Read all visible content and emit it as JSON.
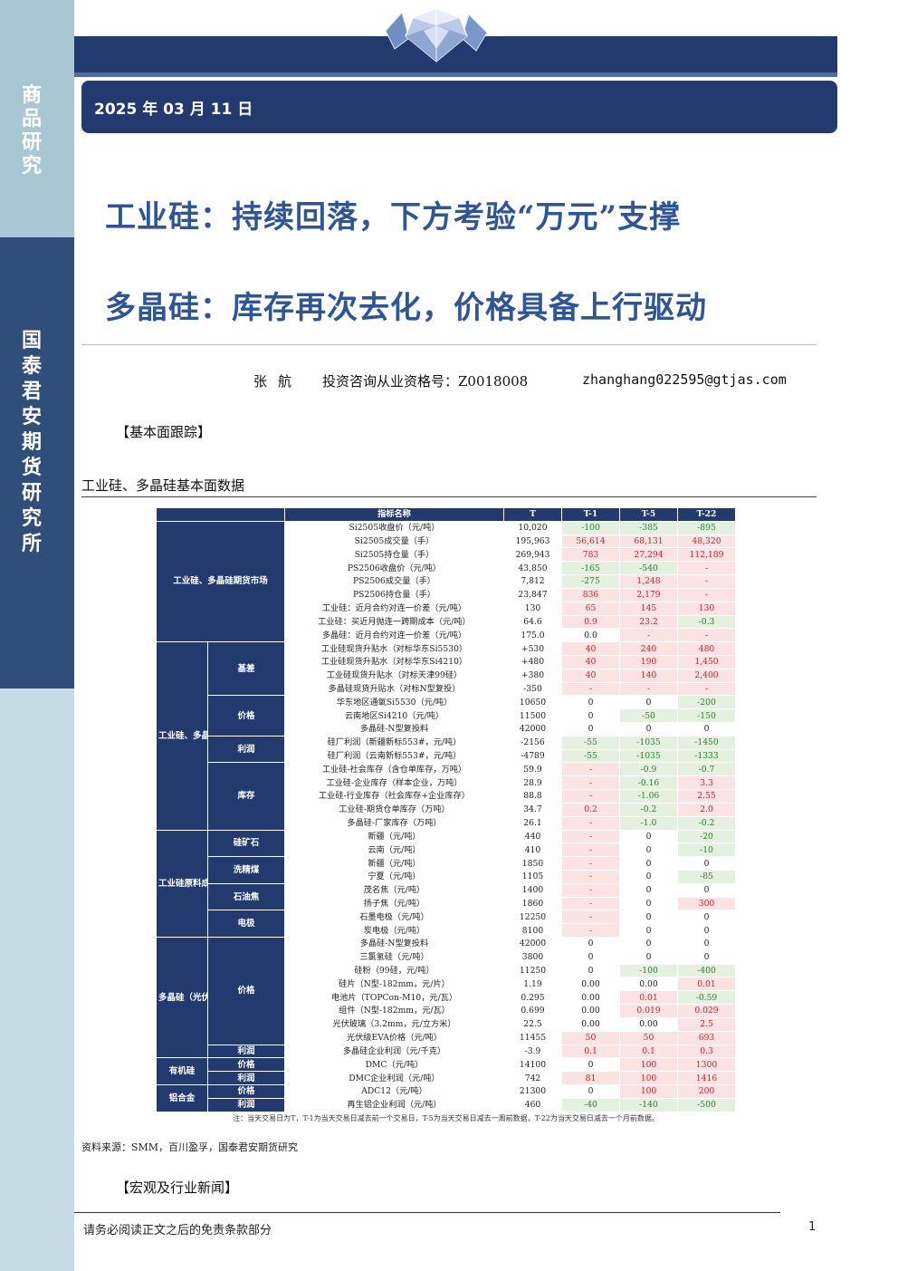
{
  "sidebar": {
    "top_label": "商品研究",
    "mid_label": "国泰君安期货研究所"
  },
  "header": {
    "date": "2025 年 03 月 11 日"
  },
  "titles": {
    "line1": "工业硅：持续回落，下方考验“万元”支撑",
    "line2": "多晶硅：库存再次去化，价格具备上行驱动"
  },
  "author": {
    "name": "张航",
    "qualification": "投资咨询从业资格号：Z0018008",
    "email": "zhanghang022595@gtjas.com"
  },
  "sections": {
    "fundamentals": "【基本面跟踪】",
    "news": "【宏观及行业新闻】"
  },
  "table_caption": "工业硅、多晶硅基本面数据",
  "source_note": "资料来源：SMM，百川盈孚，国泰君安期货研究",
  "footer": {
    "disclaimer": "请务必阅读正文之后的免责条款部分",
    "page": "1"
  },
  "table": {
    "headers": [
      "指标名称",
      "T",
      "T-1",
      "T-5",
      "T-22"
    ],
    "groups": {
      "futures": "工业硅、多晶硅期货市场",
      "spot": "工业硅、多晶硅",
      "cost": "工业硅原料成本",
      "pv": "多晶硅（光伏）",
      "silicone": "有机硅",
      "alloy": "铝合金"
    },
    "subs": {
      "basis": "基差",
      "price": "价格",
      "profit": "利润",
      "inventory": "库存",
      "ore": "硅矿石",
      "coal": "洗精煤",
      "coke": "石油焦",
      "electrode": "电极",
      "pv_price": "价格",
      "pv_profit": "利润",
      "dmc_price": "价格",
      "dmc_profit": "利润",
      "adc_price": "价格",
      "adc_profit": "利润"
    },
    "rows": [
      {
        "name": "Si2505收盘价（元/吨）",
        "t": "10,020",
        "t1": "-100",
        "t5": "-385",
        "t22": "-895",
        "c1": "green",
        "c5": "green",
        "c22": "green"
      },
      {
        "name": "Si2505成交量（手）",
        "t": "195,963",
        "t1": "56,614",
        "t5": "68,131",
        "t22": "48,320",
        "c1": "red",
        "c5": "red",
        "c22": "red"
      },
      {
        "name": "Si2505持仓量（手）",
        "t": "269,943",
        "t1": "783",
        "t5": "27,294",
        "t22": "112,189",
        "c1": "red",
        "c5": "red",
        "c22": "red"
      },
      {
        "name": "PS2506收盘价（元/吨）",
        "t": "43,850",
        "t1": "-165",
        "t5": "-540",
        "t22": "-",
        "c1": "green",
        "c5": "green",
        "c22": "red"
      },
      {
        "name": "PS2506成交量（手）",
        "t": "7,812",
        "t1": "-275",
        "t5": "1,248",
        "t22": "-",
        "c1": "green",
        "c5": "red",
        "c22": "red"
      },
      {
        "name": "PS2506持仓量（手）",
        "t": "23,847",
        "t1": "836",
        "t5": "2,179",
        "t22": "-",
        "c1": "red",
        "c5": "red",
        "c22": "red"
      },
      {
        "name": "工业硅：近月合约对连一价差（元/吨）",
        "t": "130",
        "t1": "65",
        "t5": "145",
        "t22": "130",
        "c1": "red",
        "c5": "red",
        "c22": "red"
      },
      {
        "name": "工业硅：买近月抛连一跨期成本（元/吨）",
        "t": "64.6",
        "t1": "0.9",
        "t5": "23.2",
        "t22": "-0.3",
        "c1": "red",
        "c5": "red",
        "c22": "green"
      },
      {
        "name": "多晶硅：近月合约对连一价差（元/吨）",
        "t": "175.0",
        "t1": "0.0",
        "t5": "-",
        "t22": "-",
        "c1": "plain",
        "c5": "red",
        "c22": "red"
      },
      {
        "name": "工业硅现货升贴水（对标华东Si5530）",
        "t": "+530",
        "t1": "40",
        "t5": "240",
        "t22": "480",
        "c1": "red",
        "c5": "red",
        "c22": "red"
      },
      {
        "name": "工业硅现货升贴水（对标华东Si4210）",
        "t": "+480",
        "t1": "40",
        "t5": "190",
        "t22": "1,450",
        "c1": "red",
        "c5": "red",
        "c22": "red"
      },
      {
        "name": "工业硅现货升贴水（对标天津99硅）",
        "t": "+380",
        "t1": "40",
        "t5": "140",
        "t22": "2,400",
        "c1": "red",
        "c5": "red",
        "c22": "red"
      },
      {
        "name": "多晶硅现货升贴水（对标N型复投）",
        "t": "-350",
        "t1": "-",
        "t5": "-",
        "t22": "-",
        "c1": "red",
        "c5": "red",
        "c22": "red"
      },
      {
        "name": "华东地区通氧Si5530（元/吨）",
        "t": "10650",
        "t1": "0",
        "t5": "0",
        "t22": "-200",
        "c1": "plain",
        "c5": "plain",
        "c22": "green"
      },
      {
        "name": "云南地区Si4210（元/吨）",
        "t": "11500",
        "t1": "0",
        "t5": "-50",
        "t22": "-150",
        "c1": "plain",
        "c5": "green",
        "c22": "green"
      },
      {
        "name": "多晶硅-N型复投料",
        "t": "42000",
        "t1": "0",
        "t5": "0",
        "t22": "0",
        "c1": "plain",
        "c5": "plain",
        "c22": "plain"
      },
      {
        "name": "硅厂利润（新疆新标553#，元/吨）",
        "t": "-2156",
        "t1": "-55",
        "t5": "-1035",
        "t22": "-1450",
        "c1": "green",
        "c5": "green",
        "c22": "green"
      },
      {
        "name": "硅厂利润（云南新标553#，元/吨）",
        "t": "-4789",
        "t1": "-55",
        "t5": "-1035",
        "t22": "-1333",
        "c1": "green",
        "c5": "green",
        "c22": "green"
      },
      {
        "name": "工业硅-社会库存（含仓单库存，万吨）",
        "t": "59.9",
        "t1": "-",
        "t5": "-0.9",
        "t22": "-0.7",
        "c1": "red",
        "c5": "green",
        "c22": "green"
      },
      {
        "name": "工业硅-企业库存（样本企业，万吨）",
        "t": "28.9",
        "t1": "-",
        "t5": "-0.16",
        "t22": "3.3",
        "c1": "red",
        "c5": "green",
        "c22": "red"
      },
      {
        "name": "工业硅-行业库存（社会库存+企业库存）",
        "t": "88.8",
        "t1": "-",
        "t5": "-1.06",
        "t22": "2.55",
        "c1": "red",
        "c5": "green",
        "c22": "red"
      },
      {
        "name": "工业硅-期货仓单库存（万吨）",
        "t": "34.7",
        "t1": "0.2",
        "t5": "-0.2",
        "t22": "2.0",
        "c1": "red",
        "c5": "green",
        "c22": "red"
      },
      {
        "name": "多晶硅-厂家库存（万吨）",
        "t": "26.1",
        "t1": "-",
        "t5": "-1.0",
        "t22": "-0.2",
        "c1": "red",
        "c5": "green",
        "c22": "green"
      },
      {
        "name": "新疆（元/吨）",
        "t": "440",
        "t1": "-",
        "t5": "0",
        "t22": "-20",
        "c1": "red",
        "c5": "plain",
        "c22": "green"
      },
      {
        "name": "云南（元/吨）",
        "t": "410",
        "t1": "-",
        "t5": "0",
        "t22": "-10",
        "c1": "red",
        "c5": "plain",
        "c22": "green"
      },
      {
        "name": "新疆（元/吨）",
        "t": "1850",
        "t1": "-",
        "t5": "0",
        "t22": "0",
        "c1": "red",
        "c5": "plain",
        "c22": "plain"
      },
      {
        "name": "宁夏（元/吨）",
        "t": "1105",
        "t1": "-",
        "t5": "0",
        "t22": "-85",
        "c1": "red",
        "c5": "plain",
        "c22": "green"
      },
      {
        "name": "茂名焦（元/吨）",
        "t": "1400",
        "t1": "-",
        "t5": "0",
        "t22": "0",
        "c1": "red",
        "c5": "plain",
        "c22": "plain"
      },
      {
        "name": "扬子焦（元/吨）",
        "t": "1860",
        "t1": "-",
        "t5": "0",
        "t22": "300",
        "c1": "red",
        "c5": "plain",
        "c22": "red"
      },
      {
        "name": "石墨电极（元/吨）",
        "t": "12250",
        "t1": "-",
        "t5": "0",
        "t22": "0",
        "c1": "red",
        "c5": "plain",
        "c22": "plain"
      },
      {
        "name": "炭电极（元/吨）",
        "t": "8100",
        "t1": "-",
        "t5": "0",
        "t22": "0",
        "c1": "red",
        "c5": "plain",
        "c22": "plain"
      },
      {
        "name": "多晶硅-N型复投料",
        "t": "42000",
        "t1": "0",
        "t5": "0",
        "t22": "0",
        "c1": "plain",
        "c5": "plain",
        "c22": "plain"
      },
      {
        "name": "三氯氢硅（元/吨）",
        "t": "3800",
        "t1": "0",
        "t5": "0",
        "t22": "0",
        "c1": "plain",
        "c5": "plain",
        "c22": "plain"
      },
      {
        "name": "硅粉（99硅，元/吨）",
        "t": "11250",
        "t1": "0",
        "t5": "-100",
        "t22": "-400",
        "c1": "plain",
        "c5": "green",
        "c22": "green"
      },
      {
        "name": "硅片（N型-182mm，元/片）",
        "t": "1.19",
        "t1": "0.00",
        "t5": "0.00",
        "t22": "0.01",
        "c1": "plain",
        "c5": "plain",
        "c22": "red"
      },
      {
        "name": "电池片（TOPCon-M10，元/瓦）",
        "t": "0.295",
        "t1": "0.00",
        "t5": "0.01",
        "t22": "-0.59",
        "c1": "plain",
        "c5": "red",
        "c22": "green"
      },
      {
        "name": "组件（N型-182mm，元/瓦）",
        "t": "0.699",
        "t1": "0.00",
        "t5": "0.019",
        "t22": "0.029",
        "c1": "plain",
        "c5": "red",
        "c22": "red"
      },
      {
        "name": "光伏玻璃（3.2mm，元/立方米）",
        "t": "22.5",
        "t1": "0.00",
        "t5": "0.00",
        "t22": "2.5",
        "c1": "plain",
        "c5": "plain",
        "c22": "red"
      },
      {
        "name": "光伏级EVA价格（元/吨）",
        "t": "11455",
        "t1": "50",
        "t5": "50",
        "t22": "693",
        "c1": "red",
        "c5": "red",
        "c22": "red"
      },
      {
        "name": "多晶硅企业利润（元/千克）",
        "t": "-3.9",
        "t1": "0.1",
        "t5": "0.1",
        "t22": "0.3",
        "c1": "red",
        "c5": "red",
        "c22": "red"
      },
      {
        "name": "DMC（元/吨）",
        "t": "14100",
        "t1": "0",
        "t5": "100",
        "t22": "1300",
        "c1": "plain",
        "c5": "red",
        "c22": "red"
      },
      {
        "name": "DMC企业利润（元/吨）",
        "t": "742",
        "t1": "81",
        "t5": "100",
        "t22": "1416",
        "c1": "red",
        "c5": "red",
        "c22": "red"
      },
      {
        "name": "ADC12（元/吨）",
        "t": "21300",
        "t1": "0",
        "t5": "100",
        "t22": "200",
        "c1": "plain",
        "c5": "red",
        "c22": "red"
      },
      {
        "name": "再生铝企业利润（元/吨）",
        "t": "460",
        "t1": "-40",
        "t5": "-140",
        "t22": "-500",
        "c1": "green",
        "c5": "green",
        "c22": "green"
      }
    ],
    "note": "注：当天交易日为T，T-1为当天交易日减去前一个交易日，T-5为当天交易日减去一周前数据，T-22为当天交易日减去一个月前数据。"
  }
}
